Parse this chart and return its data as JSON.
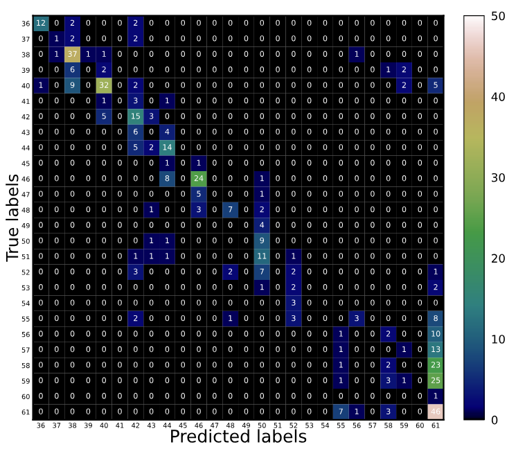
{
  "chart_data": {
    "type": "heatmap",
    "xlabel": "Predicted labels",
    "ylabel": "True labels",
    "categories": [
      "36",
      "37",
      "38",
      "39",
      "40",
      "41",
      "42",
      "43",
      "44",
      "45",
      "46",
      "47",
      "48",
      "49",
      "50",
      "51",
      "52",
      "53",
      "54",
      "55",
      "56",
      "57",
      "58",
      "59",
      "60",
      "61"
    ],
    "y_categories": [
      "36",
      "37",
      "38",
      "39",
      "40",
      "41",
      "42",
      "43",
      "44",
      "45",
      "46",
      "47",
      "48",
      "49",
      "50",
      "51",
      "52",
      "53",
      "54",
      "55",
      "56",
      "57",
      "58",
      "59",
      "60",
      "61"
    ],
    "cells": [
      [
        12,
        0,
        2,
        0,
        0,
        0,
        2,
        0,
        0,
        0,
        0,
        0,
        0,
        0,
        0,
        0,
        0,
        0,
        0,
        0,
        0,
        0,
        0,
        0,
        0,
        0
      ],
      [
        0,
        1,
        2,
        0,
        0,
        0,
        2,
        0,
        0,
        0,
        0,
        0,
        0,
        0,
        0,
        0,
        0,
        0,
        0,
        0,
        0,
        0,
        0,
        0,
        0,
        0
      ],
      [
        0,
        1,
        37,
        1,
        1,
        0,
        0,
        0,
        0,
        0,
        0,
        0,
        0,
        0,
        0,
        0,
        0,
        0,
        0,
        0,
        1,
        0,
        0,
        0,
        0,
        0
      ],
      [
        0,
        0,
        6,
        0,
        2,
        0,
        0,
        0,
        0,
        0,
        0,
        0,
        0,
        0,
        0,
        0,
        0,
        0,
        0,
        0,
        0,
        0,
        1,
        2,
        0,
        0
      ],
      [
        1,
        0,
        9,
        0,
        32,
        0,
        2,
        0,
        0,
        0,
        0,
        0,
        0,
        0,
        0,
        0,
        0,
        0,
        0,
        0,
        0,
        0,
        0,
        2,
        0,
        5
      ],
      [
        0,
        0,
        0,
        0,
        1,
        0,
        3,
        0,
        1,
        0,
        0,
        0,
        0,
        0,
        0,
        0,
        0,
        0,
        0,
        0,
        0,
        0,
        0,
        0,
        0,
        0
      ],
      [
        0,
        0,
        0,
        0,
        5,
        0,
        15,
        3,
        0,
        0,
        0,
        0,
        0,
        0,
        0,
        0,
        0,
        0,
        0,
        0,
        0,
        0,
        0,
        0,
        0,
        0
      ],
      [
        0,
        0,
        0,
        0,
        0,
        0,
        6,
        0,
        4,
        0,
        0,
        0,
        0,
        0,
        0,
        0,
        0,
        0,
        0,
        0,
        0,
        0,
        0,
        0,
        0,
        0
      ],
      [
        0,
        0,
        0,
        0,
        0,
        0,
        5,
        2,
        14,
        0,
        0,
        0,
        0,
        0,
        0,
        0,
        0,
        0,
        0,
        0,
        0,
        0,
        0,
        0,
        0,
        0
      ],
      [
        0,
        0,
        0,
        0,
        0,
        0,
        0,
        0,
        1,
        0,
        1,
        0,
        0,
        0,
        0,
        0,
        0,
        0,
        0,
        0,
        0,
        0,
        0,
        0,
        0,
        0
      ],
      [
        0,
        0,
        0,
        0,
        0,
        0,
        0,
        0,
        8,
        0,
        24,
        0,
        0,
        0,
        1,
        0,
        0,
        0,
        0,
        0,
        0,
        0,
        0,
        0,
        0,
        0
      ],
      [
        0,
        0,
        0,
        0,
        0,
        0,
        0,
        0,
        0,
        0,
        5,
        0,
        0,
        0,
        1,
        0,
        0,
        0,
        0,
        0,
        0,
        0,
        0,
        0,
        0,
        0
      ],
      [
        0,
        0,
        0,
        0,
        0,
        0,
        0,
        1,
        0,
        0,
        3,
        0,
        7,
        0,
        2,
        0,
        0,
        0,
        0,
        0,
        0,
        0,
        0,
        0,
        0,
        0
      ],
      [
        0,
        0,
        0,
        0,
        0,
        0,
        0,
        0,
        0,
        0,
        0,
        0,
        0,
        0,
        4,
        0,
        0,
        0,
        0,
        0,
        0,
        0,
        0,
        0,
        0,
        0
      ],
      [
        0,
        0,
        0,
        0,
        0,
        0,
        0,
        1,
        1,
        0,
        0,
        0,
        0,
        0,
        9,
        0,
        0,
        0,
        0,
        0,
        0,
        0,
        0,
        0,
        0,
        0
      ],
      [
        0,
        0,
        0,
        0,
        0,
        0,
        1,
        1,
        1,
        0,
        0,
        0,
        0,
        0,
        11,
        0,
        1,
        0,
        0,
        0,
        0,
        0,
        0,
        0,
        0,
        0
      ],
      [
        0,
        0,
        0,
        0,
        0,
        0,
        3,
        0,
        0,
        0,
        0,
        0,
        2,
        0,
        7,
        0,
        2,
        0,
        0,
        0,
        0,
        0,
        0,
        0,
        0,
        1
      ],
      [
        0,
        0,
        0,
        0,
        0,
        0,
        0,
        0,
        0,
        0,
        0,
        0,
        0,
        0,
        1,
        0,
        2,
        0,
        0,
        0,
        0,
        0,
        0,
        0,
        0,
        2
      ],
      [
        0,
        0,
        0,
        0,
        0,
        0,
        0,
        0,
        0,
        0,
        0,
        0,
        0,
        0,
        0,
        0,
        3,
        0,
        0,
        0,
        0,
        0,
        0,
        0,
        0,
        0
      ],
      [
        0,
        0,
        0,
        0,
        0,
        0,
        2,
        0,
        0,
        0,
        0,
        0,
        1,
        0,
        0,
        0,
        3,
        0,
        0,
        0,
        3,
        0,
        0,
        0,
        0,
        8
      ],
      [
        0,
        0,
        0,
        0,
        0,
        0,
        0,
        0,
        0,
        0,
        0,
        0,
        0,
        0,
        0,
        0,
        0,
        0,
        0,
        1,
        0,
        0,
        2,
        0,
        0,
        10
      ],
      [
        0,
        0,
        0,
        0,
        0,
        0,
        0,
        0,
        0,
        0,
        0,
        0,
        0,
        0,
        0,
        0,
        0,
        0,
        0,
        1,
        0,
        0,
        0,
        1,
        0,
        13
      ],
      [
        0,
        0,
        0,
        0,
        0,
        0,
        0,
        0,
        0,
        0,
        0,
        0,
        0,
        0,
        0,
        0,
        0,
        0,
        0,
        1,
        0,
        0,
        2,
        0,
        0,
        23
      ],
      [
        0,
        0,
        0,
        0,
        0,
        0,
        0,
        0,
        0,
        0,
        0,
        0,
        0,
        0,
        0,
        0,
        0,
        0,
        0,
        1,
        0,
        0,
        3,
        1,
        0,
        25
      ],
      [
        0,
        0,
        0,
        0,
        0,
        0,
        0,
        0,
        0,
        0,
        0,
        0,
        0,
        0,
        0,
        0,
        0,
        0,
        0,
        0,
        0,
        0,
        0,
        0,
        0,
        1
      ],
      [
        0,
        0,
        0,
        0,
        0,
        0,
        0,
        0,
        0,
        0,
        0,
        0,
        0,
        0,
        0,
        0,
        0,
        0,
        0,
        7,
        1,
        0,
        3,
        0,
        0,
        46
      ]
    ],
    "clim": [
      0,
      50
    ],
    "cticks": [
      0,
      10,
      20,
      30,
      40,
      50
    ],
    "data_labels": true,
    "grid": false
  }
}
